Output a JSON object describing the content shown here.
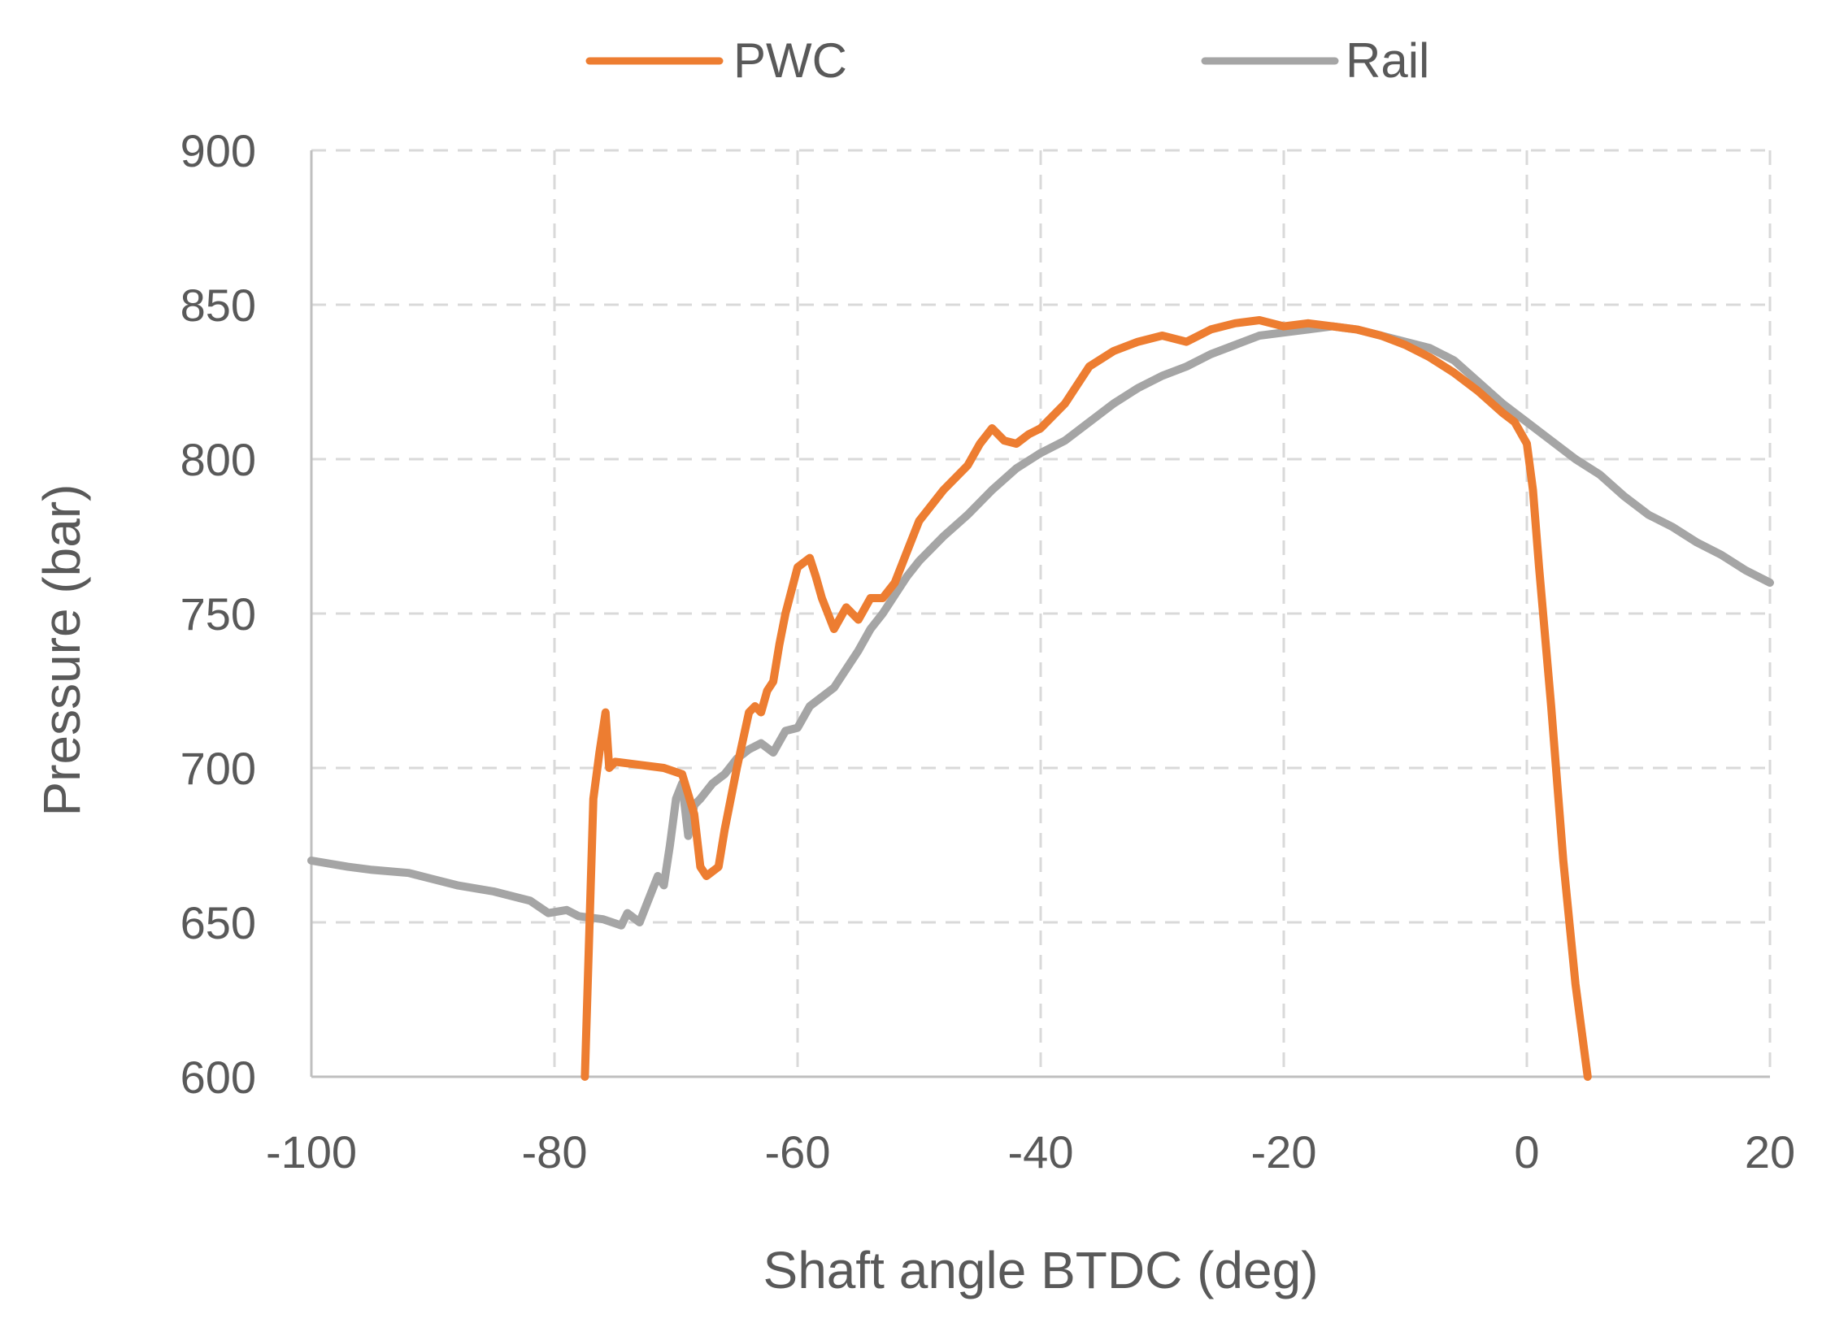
{
  "chart_data": {
    "type": "line",
    "title": "",
    "xlabel": "Shaft angle BTDC (deg)",
    "ylabel": "Pressure (bar)",
    "xlim": [
      -100,
      20
    ],
    "ylim": [
      600,
      900
    ],
    "xticks": [
      -100,
      -80,
      -60,
      -40,
      -20,
      0,
      20
    ],
    "yticks": [
      600,
      650,
      700,
      750,
      800,
      850,
      900
    ],
    "xtick_labels": [
      "-100",
      "-80",
      "-60",
      "-40",
      "-20",
      "0",
      "20"
    ],
    "ytick_labels": [
      "600",
      "650",
      "700",
      "750",
      "800",
      "850",
      "900"
    ],
    "grid": true,
    "legend_position": "top",
    "series": [
      {
        "name": "PWC",
        "color": "#ed7d31",
        "x": [
          -77.5,
          -76.8,
          -76.3,
          -75.8,
          -75.5,
          -75,
          -73,
          -71,
          -69.5,
          -68.5,
          -68,
          -67.5,
          -66.5,
          -66,
          -65,
          -64,
          -63.5,
          -63,
          -62.5,
          -62,
          -61.5,
          -61,
          -60,
          -59,
          -58.5,
          -58,
          -57,
          -56,
          -55,
          -54,
          -53,
          -52,
          -51,
          -50,
          -48,
          -46,
          -45,
          -44,
          -43,
          -42,
          -41,
          -40,
          -38,
          -36,
          -34,
          -32,
          -30,
          -28,
          -26,
          -24,
          -22,
          -20,
          -18,
          -16,
          -14,
          -12,
          -10,
          -8,
          -6,
          -4,
          -2,
          -1,
          0,
          0.5,
          1,
          2,
          3,
          4,
          5
        ],
        "values": [
          600,
          690,
          705,
          718,
          700,
          702,
          701,
          700,
          698,
          685,
          668,
          665,
          668,
          680,
          700,
          718,
          720,
          718,
          725,
          728,
          740,
          750,
          765,
          768,
          762,
          755,
          745,
          752,
          748,
          755,
          755,
          760,
          770,
          780,
          790,
          798,
          805,
          810,
          806,
          805,
          808,
          810,
          818,
          830,
          835,
          838,
          840,
          838,
          842,
          844,
          845,
          843,
          844,
          843,
          842,
          840,
          837,
          833,
          828,
          822,
          815,
          812,
          805,
          790,
          765,
          720,
          670,
          630,
          600
        ]
      },
      {
        "name": "Rail",
        "color": "#a5a5a5",
        "x": [
          -100,
          -97,
          -95,
          -92,
          -90,
          -88,
          -85,
          -82,
          -80.5,
          -79,
          -78,
          -76,
          -74.5,
          -74,
          -73,
          -72.5,
          -72,
          -71.5,
          -71,
          -70.5,
          -70,
          -69.5,
          -69,
          -68.5,
          -68,
          -67,
          -66,
          -65,
          -64,
          -63,
          -62,
          -61,
          -60,
          -59,
          -58,
          -57,
          -56,
          -55,
          -54,
          -53,
          -52,
          -51,
          -50,
          -48,
          -46,
          -44,
          -42,
          -40,
          -38,
          -36,
          -34,
          -32,
          -30,
          -28,
          -26,
          -24,
          -22,
          -20,
          -18,
          -16,
          -14,
          -12,
          -10,
          -8,
          -6,
          -4,
          -2,
          0,
          2,
          4,
          6,
          8,
          10,
          12,
          14,
          16,
          18,
          20
        ],
        "values": [
          670,
          668,
          667,
          666,
          664,
          662,
          660,
          657,
          653,
          654,
          652,
          651,
          649,
          653,
          650,
          655,
          660,
          665,
          662,
          675,
          690,
          695,
          678,
          688,
          690,
          695,
          698,
          703,
          706,
          708,
          705,
          712,
          713,
          720,
          723,
          726,
          732,
          738,
          745,
          750,
          756,
          762,
          767,
          775,
          782,
          790,
          797,
          802,
          806,
          812,
          818,
          823,
          827,
          830,
          834,
          837,
          840,
          841,
          842,
          843,
          842,
          840,
          838,
          836,
          832,
          825,
          818,
          812,
          806,
          800,
          795,
          788,
          782,
          778,
          773,
          769,
          764,
          760
        ]
      }
    ]
  }
}
